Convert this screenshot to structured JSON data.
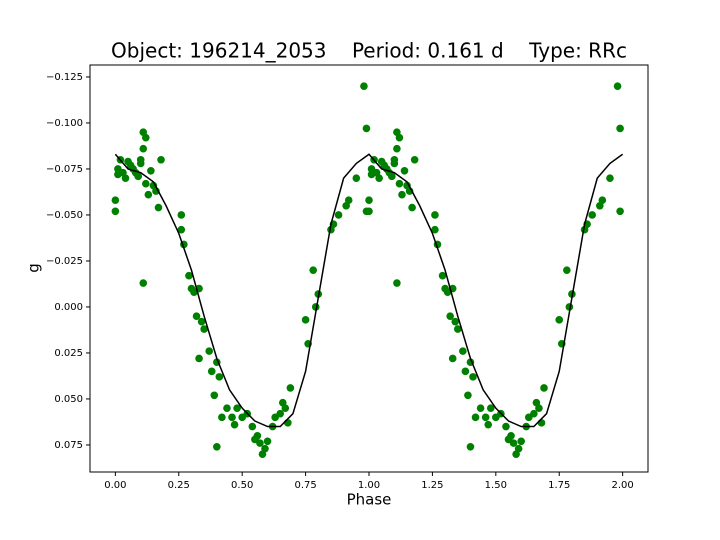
{
  "chart_data": {
    "type": "scatter",
    "title": "Object: 196214_2053    Period: 0.161 d    Type: RRc",
    "x_label": "Phase",
    "y_label": "g",
    "xlim": [
      -0.1,
      2.1
    ],
    "ylim": [
      0.0897,
      -0.1315
    ],
    "xticks": [
      {
        "value": 0,
        "label": "0.00"
      },
      {
        "value": 0.25,
        "label": "0.25"
      },
      {
        "value": 0.5,
        "label": "0.50"
      },
      {
        "value": 0.75,
        "label": "0.75"
      },
      {
        "value": 1,
        "label": "1.00"
      },
      {
        "value": 1.25,
        "label": "1.25"
      },
      {
        "value": 1.5,
        "label": "1.50"
      },
      {
        "value": 1.75,
        "label": "1.75"
      },
      {
        "value": 2,
        "label": "2.00"
      }
    ],
    "yticks": [
      {
        "value": -0.125,
        "label": "−0.125"
      },
      {
        "value": -0.1,
        "label": "−0.100"
      },
      {
        "value": -0.075,
        "label": "−0.075"
      },
      {
        "value": -0.05,
        "label": "−0.050"
      },
      {
        "value": -0.025,
        "label": "−0.025"
      },
      {
        "value": 0,
        "label": "0.000"
      },
      {
        "value": 0.025,
        "label": "0.025"
      },
      {
        "value": 0.05,
        "label": "0.050"
      },
      {
        "value": 0.075,
        "label": "0.075"
      }
    ],
    "series": [
      {
        "type": "scatter",
        "color": "#008000",
        "x": [
          0.0,
          0.0,
          0.01,
          0.01,
          0.02,
          0.03,
          0.04,
          0.05,
          0.06,
          0.07,
          0.08,
          0.09,
          0.1,
          0.1,
          0.11,
          0.11,
          0.12,
          0.12,
          0.13,
          0.11,
          0.14,
          0.15,
          0.16,
          0.17,
          0.18,
          0.26,
          0.26,
          0.27,
          0.29,
          0.3,
          0.31,
          0.32,
          0.33,
          0.34,
          0.35,
          0.33,
          0.37,
          0.38,
          0.39,
          0.4,
          0.41,
          0.42,
          0.4,
          0.44,
          0.46,
          0.47,
          0.48,
          0.5,
          0.52,
          0.54,
          0.55,
          0.56,
          0.57,
          0.58,
          0.59,
          0.6,
          0.62,
          0.63,
          0.65,
          0.66,
          0.67,
          0.68,
          0.69,
          0.75,
          0.76,
          0.78,
          0.79,
          0.8,
          0.85,
          0.86,
          0.88,
          0.91,
          0.92,
          0.95,
          0.98,
          0.99,
          0.99,
          1.0,
          1.0,
          1.01,
          1.01,
          1.02,
          1.03,
          1.04,
          1.05,
          1.06,
          1.07,
          1.08,
          1.09,
          1.1,
          1.1,
          1.11,
          1.11,
          1.12,
          1.12,
          1.13,
          1.11,
          1.14,
          1.15,
          1.16,
          1.17,
          1.18,
          1.26,
          1.26,
          1.27,
          1.29,
          1.3,
          1.31,
          1.32,
          1.33,
          1.34,
          1.35,
          1.33,
          1.37,
          1.38,
          1.39,
          1.4,
          1.41,
          1.42,
          1.4,
          1.44,
          1.46,
          1.47,
          1.48,
          1.5,
          1.52,
          1.54,
          1.55,
          1.56,
          1.57,
          1.58,
          1.59,
          1.6,
          1.62,
          1.63,
          1.65,
          1.66,
          1.67,
          1.68,
          1.69,
          1.75,
          1.76,
          1.78,
          1.79,
          1.8,
          1.85,
          1.86,
          1.88,
          1.91,
          1.92,
          1.95,
          1.98,
          1.99,
          1.99
        ],
        "values": [
          -0.058,
          -0.052,
          -0.072,
          -0.075,
          -0.08,
          -0.073,
          -0.07,
          -0.079,
          -0.077,
          -0.075,
          -0.073,
          -0.071,
          -0.078,
          -0.08,
          -0.086,
          -0.095,
          -0.092,
          -0.067,
          -0.061,
          -0.013,
          -0.074,
          -0.066,
          -0.063,
          -0.054,
          -0.08,
          -0.05,
          -0.042,
          -0.034,
          -0.017,
          -0.01,
          -0.008,
          0.005,
          -0.01,
          0.008,
          0.012,
          0.028,
          0.024,
          0.035,
          0.048,
          0.03,
          0.038,
          0.06,
          0.076,
          0.055,
          0.06,
          0.064,
          0.055,
          0.06,
          0.058,
          0.065,
          0.072,
          0.07,
          0.074,
          0.08,
          0.077,
          0.073,
          0.065,
          0.06,
          0.058,
          0.052,
          0.055,
          0.063,
          0.044,
          0.007,
          0.02,
          -0.02,
          0.0,
          -0.007,
          -0.042,
          -0.045,
          -0.05,
          -0.055,
          -0.058,
          -0.07,
          -0.12,
          -0.052,
          -0.097,
          -0.058,
          -0.052,
          -0.072,
          -0.075,
          -0.08,
          -0.073,
          -0.07,
          -0.079,
          -0.077,
          -0.075,
          -0.073,
          -0.071,
          -0.078,
          -0.08,
          -0.086,
          -0.095,
          -0.092,
          -0.067,
          -0.061,
          -0.013,
          -0.074,
          -0.066,
          -0.063,
          -0.054,
          -0.08,
          -0.05,
          -0.042,
          -0.034,
          -0.017,
          -0.01,
          -0.008,
          0.005,
          -0.01,
          0.008,
          0.012,
          0.028,
          0.024,
          0.035,
          0.048,
          0.03,
          0.038,
          0.06,
          0.076,
          0.055,
          0.06,
          0.064,
          0.055,
          0.06,
          0.058,
          0.065,
          0.072,
          0.07,
          0.074,
          0.08,
          0.077,
          0.073,
          0.065,
          0.06,
          0.058,
          0.052,
          0.055,
          0.063,
          0.044,
          0.007,
          0.02,
          -0.02,
          0.0,
          -0.007,
          -0.042,
          -0.045,
          -0.05,
          -0.055,
          -0.058,
          -0.07,
          -0.12,
          -0.052,
          -0.097
        ]
      },
      {
        "type": "line",
        "color": "#000000",
        "x": [
          0,
          0.05,
          0.1,
          0.15,
          0.2,
          0.25,
          0.3,
          0.35,
          0.4,
          0.45,
          0.5,
          0.55,
          0.6,
          0.65,
          0.7,
          0.75,
          0.8,
          0.85,
          0.9,
          0.95,
          1.0,
          1.05,
          1.1,
          1.15,
          1.2,
          1.25,
          1.3,
          1.35,
          1.4,
          1.45,
          1.5,
          1.55,
          1.6,
          1.65,
          1.7,
          1.75,
          1.8,
          1.85,
          1.9,
          1.95,
          2.0
        ],
        "values": [
          -0.083,
          -0.075,
          -0.073,
          -0.068,
          -0.055,
          -0.04,
          -0.02,
          0.005,
          0.028,
          0.045,
          0.055,
          0.062,
          0.065,
          0.065,
          0.058,
          0.035,
          -0.005,
          -0.045,
          -0.07,
          -0.078,
          -0.083,
          -0.075,
          -0.073,
          -0.068,
          -0.055,
          -0.04,
          -0.02,
          0.005,
          0.028,
          0.045,
          0.055,
          0.062,
          0.065,
          0.065,
          0.058,
          0.035,
          -0.005,
          -0.045,
          -0.07,
          -0.078,
          -0.083
        ]
      }
    ]
  }
}
